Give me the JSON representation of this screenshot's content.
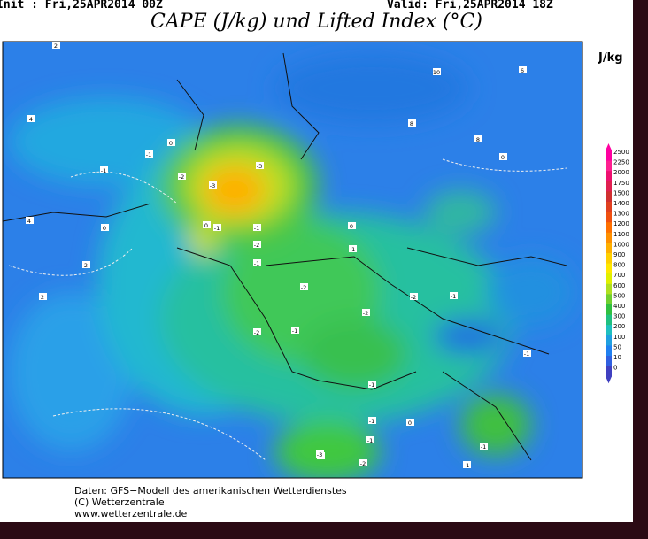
{
  "header": {
    "init": "Init : Fri,25APR2014 00Z",
    "valid": "Valid: Fri,25APR2014 18Z",
    "title": "CAPE (J/kg) und Lifted Index (°C)",
    "unit": "J/kg"
  },
  "colorbar": {
    "levels": [
      2500,
      2250,
      2000,
      1750,
      1500,
      1400,
      1300,
      1200,
      1100,
      1000,
      900,
      800,
      700,
      600,
      500,
      400,
      300,
      200,
      100,
      50,
      10,
      0
    ],
    "colors": [
      "#ff00a0",
      "#ff2090",
      "#ee1070",
      "#e02050",
      "#d03030",
      "#e04020",
      "#f05010",
      "#ff7000",
      "#ff9000",
      "#ffb000",
      "#ffd000",
      "#ffe800",
      "#e0f000",
      "#b0e020",
      "#70d030",
      "#30c040",
      "#20c080",
      "#20c0c0",
      "#20a0e0",
      "#2080f0",
      "#3060e0",
      "#4040c0"
    ]
  },
  "contour_labels": [
    "2",
    "10",
    "6",
    "4",
    "-1",
    "0",
    "-1",
    "-2",
    "-3",
    "-3",
    "0",
    "-1",
    "-1",
    "0",
    "0",
    "-2",
    "-1",
    "-1",
    "-2",
    "-2",
    "-2",
    "-1",
    "-1",
    "-2",
    "-1",
    "-1",
    "0",
    "-1",
    "-1",
    "-2",
    "-1",
    "-3",
    "-2",
    "-1",
    "0",
    "2",
    "4",
    "2",
    "8",
    "8"
  ],
  "footer": [
    "Daten: GFS−Modell des amerikanischen Wetterdienstes",
    "(C) Wetterzentrale",
    "www.wetterzentrale.de"
  ]
}
